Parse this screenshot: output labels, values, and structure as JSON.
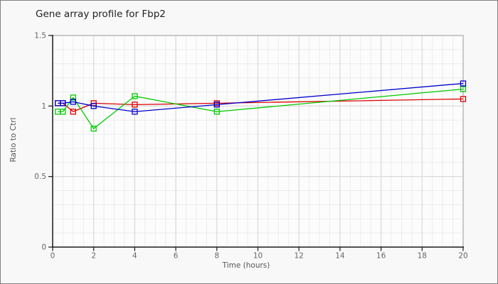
{
  "window": {
    "background": "#f8f8f8",
    "border_color": "#808080"
  },
  "chart_data": {
    "type": "line",
    "title": "Gene array profile for Fbp2",
    "xlabel": "Time (hours)",
    "ylabel": "Ratio to Ctrl",
    "x": [
      0.25,
      0.5,
      1,
      2,
      4,
      8,
      20
    ],
    "series": [
      {
        "name": "red",
        "color": "#dd0000",
        "values": [
          1.02,
          1.02,
          0.96,
          1.02,
          1.01,
          1.02,
          1.05
        ]
      },
      {
        "name": "green",
        "color": "#00cc00",
        "values": [
          0.96,
          0.96,
          1.06,
          0.84,
          1.07,
          0.96,
          1.12
        ]
      },
      {
        "name": "blue",
        "color": "#0000cc",
        "values": [
          1.02,
          1.02,
          1.03,
          1.0,
          0.96,
          1.01,
          1.16
        ]
      }
    ],
    "xlim": [
      0,
      20
    ],
    "ylim": [
      0,
      1.5
    ],
    "xticks": [
      0,
      2,
      4,
      6,
      8,
      10,
      12,
      14,
      16,
      18,
      20
    ],
    "xtick_labels": [
      "0",
      "2",
      "4",
      "6",
      "8",
      "10",
      "12",
      "14",
      "16",
      "18",
      "20"
    ],
    "yticks": [
      0,
      0.5,
      1,
      1.5
    ],
    "ytick_labels": [
      "0",
      "0.5",
      "1",
      "1.5"
    ],
    "minor_x_step": 0.5,
    "minor_y_step": 0.1,
    "grid": true,
    "legend": false,
    "marker": "square",
    "colors": {
      "plot_background": "#fcfcfc",
      "minor_grid": "#ececec",
      "major_grid": "#d8d8d8",
      "plot_border": "#c8c8c8",
      "axis": "#1a1a1a",
      "tick_label": "#666666"
    }
  }
}
